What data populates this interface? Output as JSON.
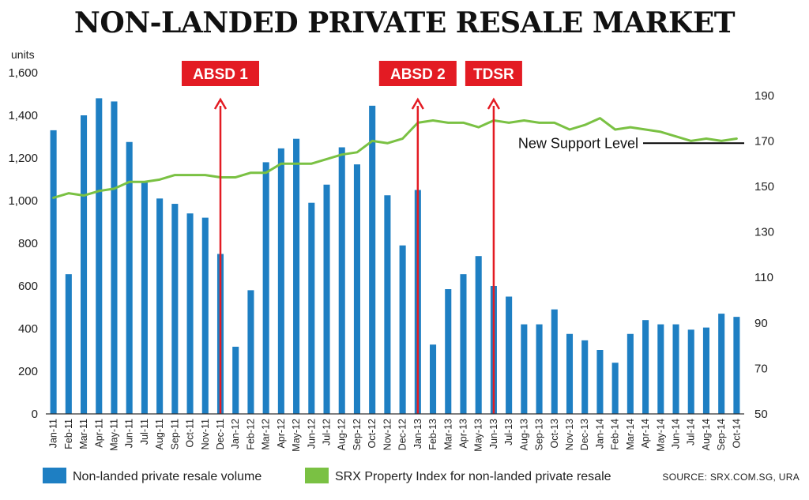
{
  "title": "NON-LANDED PRIVATE RESALE MARKET",
  "source": "SOURCE: SRX.COM.SG, URA",
  "colors": {
    "bar": "#1e7fc3",
    "line": "#7ac143",
    "annotation": "#e31b23",
    "support": "#000000"
  },
  "chart_data": {
    "type": "bar",
    "title": "NON-LANDED PRIVATE RESALE MARKET",
    "categories": [
      "Jan-11",
      "Feb-11",
      "Mar-11",
      "Apr-11",
      "May-11",
      "Jun-11",
      "Jul-11",
      "Aug-11",
      "Sep-11",
      "Oct-11",
      "Nov-11",
      "Dec-11",
      "Jan-12",
      "Feb-12",
      "Mar-12",
      "Apr-12",
      "May-12",
      "Jun-12",
      "Jul-12",
      "Aug-12",
      "Sep-12",
      "Oct-12",
      "Nov-12",
      "Dec-12",
      "Jan-13",
      "Feb-13",
      "Mar-13",
      "Apr-13",
      "May-13",
      "Jun-13",
      "Jul-13",
      "Aug-13",
      "Sep-13",
      "Oct-13",
      "Nov-13",
      "Dec-13",
      "Jan-14",
      "Feb-14",
      "Mar-14",
      "Apr-14",
      "May-14",
      "Jun-14",
      "Jul-14",
      "Aug-14",
      "Sep-14",
      "Oct-14"
    ],
    "ylabel_left": "units",
    "ylim_left": [
      0,
      1600
    ],
    "yticks_left": [
      0,
      200,
      400,
      600,
      800,
      1000,
      1200,
      1400,
      1600
    ],
    "ytick_labels_left": [
      "0",
      "200",
      "400",
      "600",
      "800",
      "1,000",
      "1,200",
      "1,400",
      "1,600"
    ],
    "ylim_right": [
      50,
      200
    ],
    "yticks_right": [
      50,
      70,
      90,
      110,
      130,
      150,
      170,
      190
    ],
    "grid": false,
    "legend_position": "bottom",
    "series": [
      {
        "name": "Non-landed private resale volume",
        "type": "bar",
        "axis": "left",
        "values": [
          1330,
          655,
          1400,
          1480,
          1465,
          1275,
          1090,
          1010,
          985,
          940,
          920,
          750,
          315,
          580,
          1180,
          1245,
          1290,
          990,
          1075,
          1250,
          1170,
          1445,
          1025,
          790,
          1050,
          325,
          585,
          655,
          740,
          600,
          550,
          420,
          420,
          490,
          375,
          345,
          300,
          240,
          375,
          440,
          420,
          420,
          395,
          405,
          470,
          455
        ]
      },
      {
        "name": "SRX Property Index for non-landed private resale",
        "type": "line",
        "axis": "right",
        "values": [
          145,
          147,
          146,
          148,
          149,
          152,
          152,
          153,
          155,
          155,
          155,
          154,
          154,
          156,
          156,
          160,
          160,
          160,
          162,
          164,
          165,
          170,
          169,
          171,
          178,
          179,
          178,
          178,
          176,
          179,
          178,
          179,
          178,
          178,
          175,
          177,
          180,
          175,
          176,
          175,
          174,
          172,
          170,
          171,
          170,
          171
        ]
      }
    ],
    "annotations": [
      {
        "label": "ABSD 1",
        "category": "Dec-11"
      },
      {
        "label": "ABSD 2",
        "category": "Jan-13"
      },
      {
        "label": "TDSR",
        "category": "Jun-13"
      }
    ],
    "support_line": {
      "label": "New Support Level",
      "value": 169
    }
  }
}
